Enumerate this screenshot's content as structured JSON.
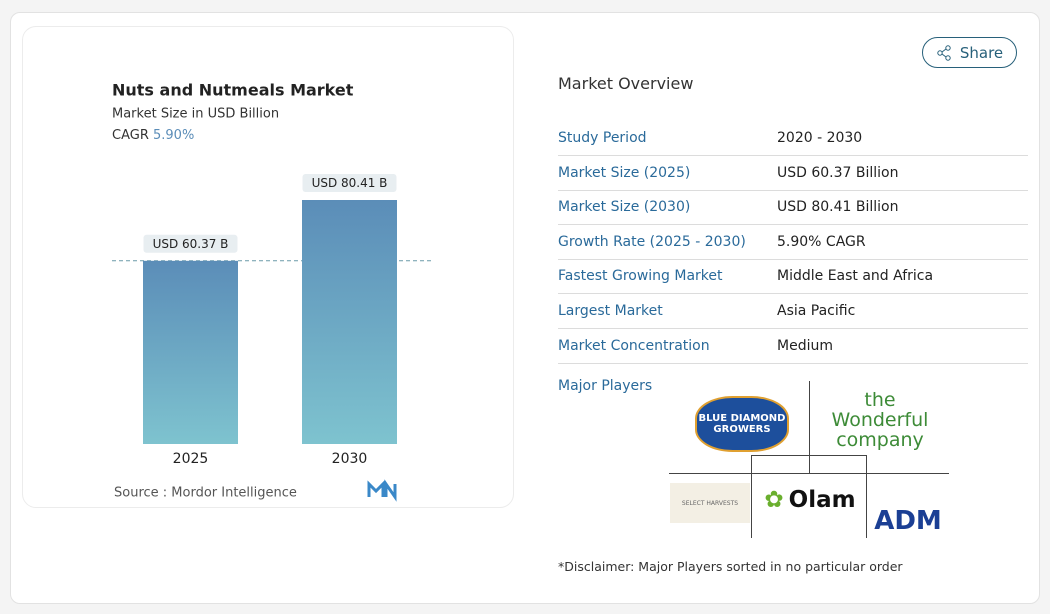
{
  "chart_data": {
    "type": "bar",
    "title": "Nuts and Nutmeals Market",
    "subtitle": "Market Size in USD Billion",
    "cagr_label": "CAGR",
    "cagr": "5.90%",
    "categories": [
      "2025",
      "2030"
    ],
    "values": [
      60.37,
      80.41
    ],
    "value_labels": [
      "USD 60.37 B",
      "USD 80.41 B"
    ],
    "color_top": "#5b8db8",
    "color_bottom": "#7ec3cf",
    "source": "Source : Mordor Intelligence"
  },
  "share": "Share",
  "overview": {
    "title": "Market Overview",
    "rows": [
      [
        "Study Period",
        "2020 - 2030"
      ],
      [
        "Market Size (2025)",
        "USD 60.37 Billion"
      ],
      [
        "Market Size (2030)",
        "USD 80.41 Billion"
      ],
      [
        "Growth Rate (2025 - 2030)",
        "5.90% CAGR"
      ],
      [
        "Fastest Growing Market",
        "Middle East and Africa"
      ],
      [
        "Largest Market",
        "Asia Pacific"
      ],
      [
        "Market Concentration",
        "Medium"
      ]
    ]
  },
  "players": {
    "title": "Major Players",
    "names": [
      "BLUE DIAMOND GROWERS",
      "the Wonderful company",
      "SELECT HARVESTS",
      "Olam",
      "ADM"
    ]
  },
  "disclaimer": "*Disclaimer: Major Players sorted in no particular order"
}
